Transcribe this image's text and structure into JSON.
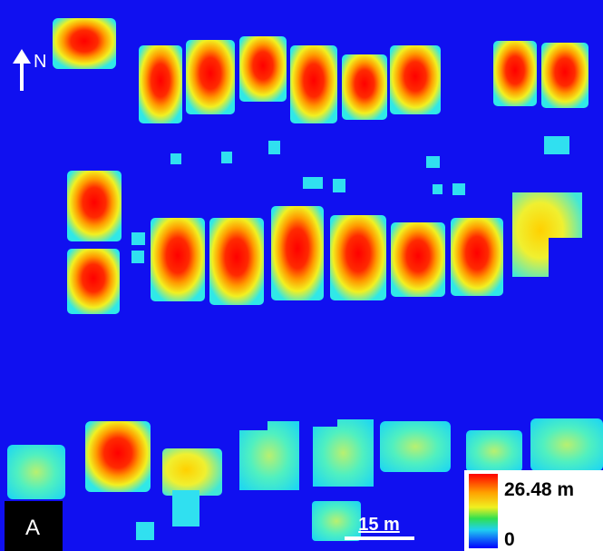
{
  "north_arrow": {
    "label": "N"
  },
  "panel_label": "A",
  "scale_bar": {
    "label": "15 m"
  },
  "colorbar": {
    "max_label": "26.48 m",
    "min_label": "0"
  }
}
